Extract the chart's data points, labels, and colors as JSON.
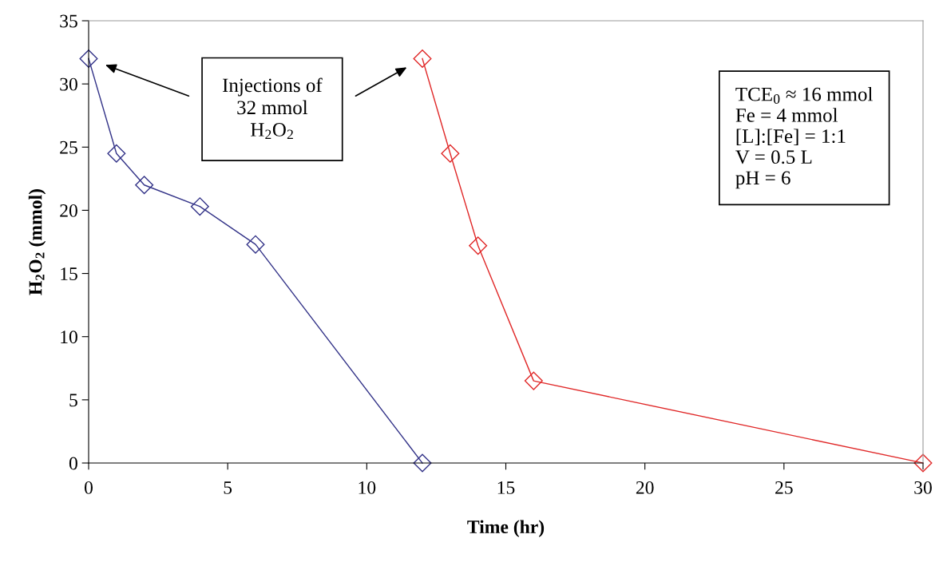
{
  "chart_data": {
    "type": "line",
    "xlabel": "Time (hr)",
    "ylabel": "H$_{2}$O$_{2}$ (mmol)",
    "xlim": [
      0,
      30
    ],
    "xticks": [
      0,
      5,
      10,
      15,
      20,
      25,
      30
    ],
    "ylim": [
      0,
      35
    ],
    "yticks": [
      0,
      5,
      10,
      15,
      20,
      25,
      30,
      35
    ],
    "marker": "diamond",
    "line_style": "solid",
    "grid": false,
    "legend": false,
    "series": [
      {
        "color": "#333388",
        "x": [
          0,
          1,
          2,
          4,
          6,
          12
        ],
        "values": [
          32,
          24.5,
          22,
          20.3,
          17.3,
          0
        ]
      },
      {
        "color": "#e02828",
        "x": [
          12,
          13,
          14,
          16,
          30
        ],
        "values": [
          32,
          24.5,
          17.2,
          6.5,
          0
        ]
      }
    ],
    "annotations": [
      "Injections of\n32 mmol\nH$_{2}$O$_{2}$",
      "TCE$_{0}$ ≈ 16 mmol\nFe = 4 mmol\n[L]:[Fe] = 1:1\nV = 0.5 L\npH = 6"
    ]
  }
}
